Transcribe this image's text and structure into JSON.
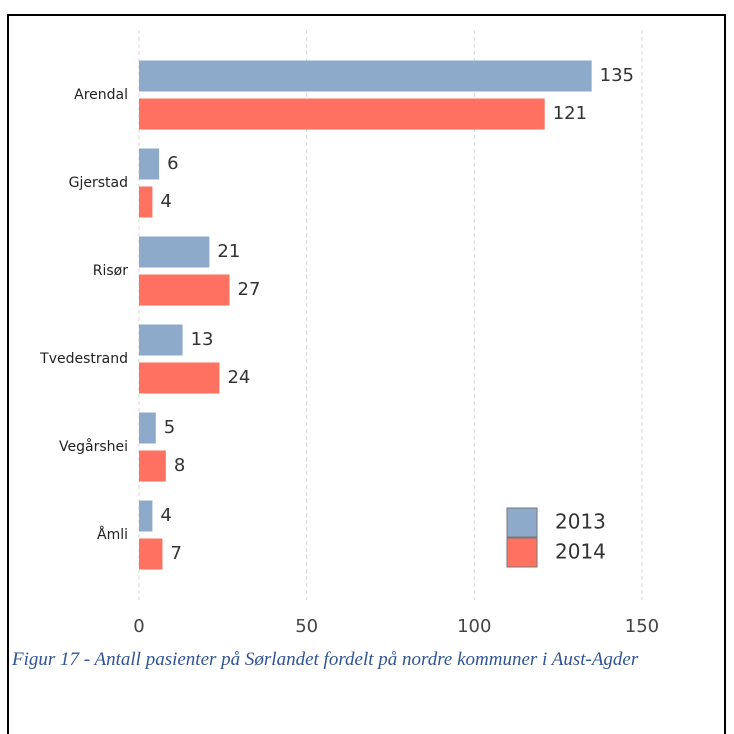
{
  "chart_data": {
    "type": "barh",
    "categories": [
      "Arendal",
      "Gjerstad",
      "Risør",
      "Tvedestrand",
      "Vegårshei",
      "Åmli"
    ],
    "series": [
      {
        "name": "2013",
        "color": "#8eaacb",
        "values": [
          135,
          6,
          21,
          13,
          5,
          4
        ]
      },
      {
        "name": "2014",
        "color": "#ff7262",
        "values": [
          121,
          4,
          27,
          24,
          8,
          7
        ]
      }
    ],
    "xlim": [
      0,
      170
    ],
    "xticks": [
      0,
      50,
      100,
      150
    ],
    "grid": true,
    "legend": "lower right"
  },
  "caption": "Figur 17 - Antall pasienter på Sørlandet fordelt på nordre kommuner i Aust-Agder"
}
